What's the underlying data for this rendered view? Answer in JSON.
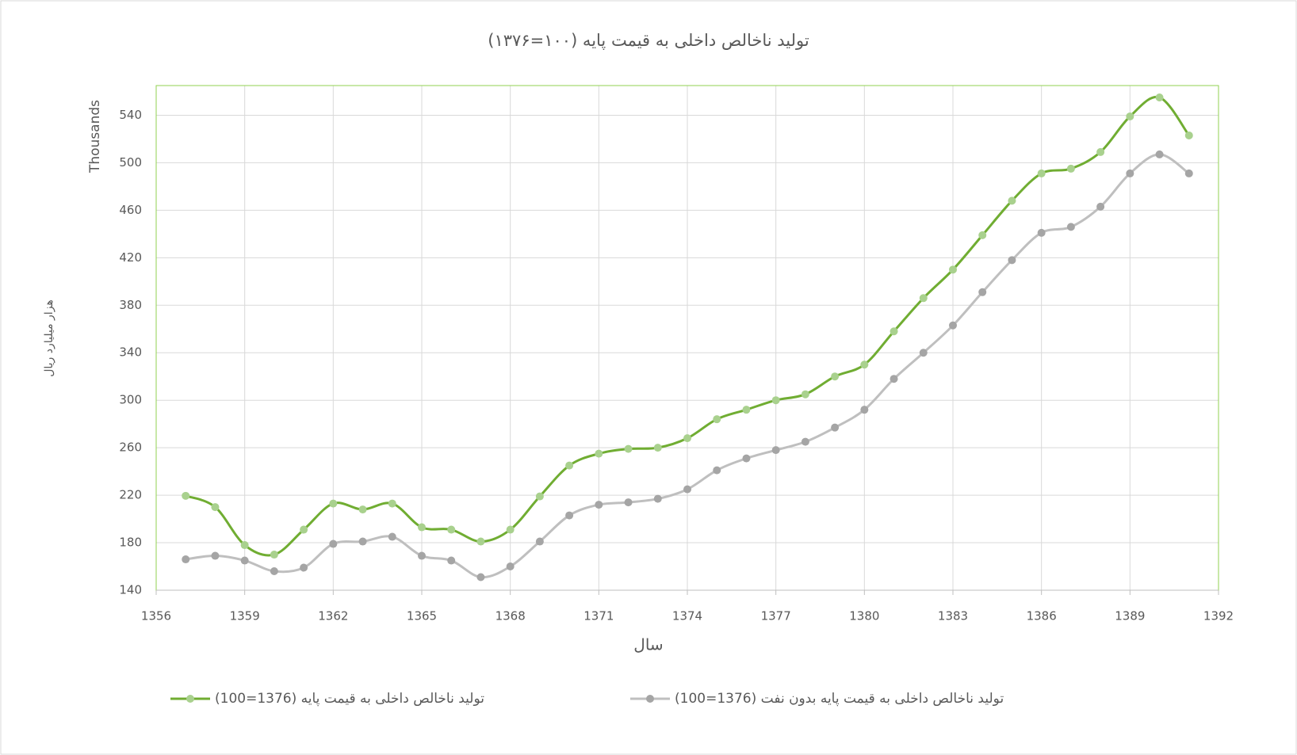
{
  "chart_data": {
    "type": "line",
    "title": "تولید ناخالص داخلی به قیمت پایه (۱۰۰=۱۳۷۶)",
    "x_label": "سال",
    "y_label": "هزار میلیارد ریال",
    "y_unit_label": "Thousands",
    "x": [
      1357,
      1358,
      1359,
      1360,
      1361,
      1362,
      1363,
      1364,
      1365,
      1366,
      1367,
      1368,
      1369,
      1370,
      1371,
      1372,
      1373,
      1374,
      1375,
      1376,
      1377,
      1378,
      1379,
      1380,
      1381,
      1382,
      1383,
      1384,
      1385,
      1386,
      1387,
      1388,
      1389,
      1390,
      1391
    ],
    "series": [
      {
        "name": "تولید ناخالص داخلی به قیمت پایه (1376=100)",
        "color": "#70ad32",
        "marker_color": "#a9d18e",
        "values": [
          219.5,
          210,
          178,
          170,
          191,
          213,
          208,
          213,
          193,
          191,
          181,
          191,
          219,
          245,
          255,
          259,
          260,
          268,
          284,
          292,
          300,
          305,
          320,
          330,
          358,
          386,
          410,
          439,
          468,
          491,
          495,
          509,
          539,
          555,
          523
        ]
      },
      {
        "name": "تولید ناخالص داخلی به قیمت پایه بدون نفت (1376=100)",
        "color": "#bfbfbf",
        "marker_color": "#a5a5a5",
        "values": [
          166,
          169,
          165,
          156,
          159,
          179,
          181,
          185,
          169,
          165,
          151,
          160,
          181,
          203,
          212,
          214,
          217,
          225,
          241,
          251,
          258,
          265,
          277,
          292,
          318,
          340,
          363,
          391,
          418,
          441,
          446,
          463,
          491,
          507,
          491
        ]
      }
    ],
    "xlim": [
      1356,
      1392
    ],
    "xticks": [
      1356,
      1359,
      1362,
      1365,
      1368,
      1371,
      1374,
      1377,
      1380,
      1383,
      1386,
      1389,
      1392
    ],
    "ylim": [
      140,
      565
    ],
    "yticks": [
      140,
      180,
      220,
      260,
      300,
      340,
      380,
      420,
      460,
      500,
      540
    ],
    "grid": true,
    "smooth": true,
    "legend": "bottom"
  }
}
